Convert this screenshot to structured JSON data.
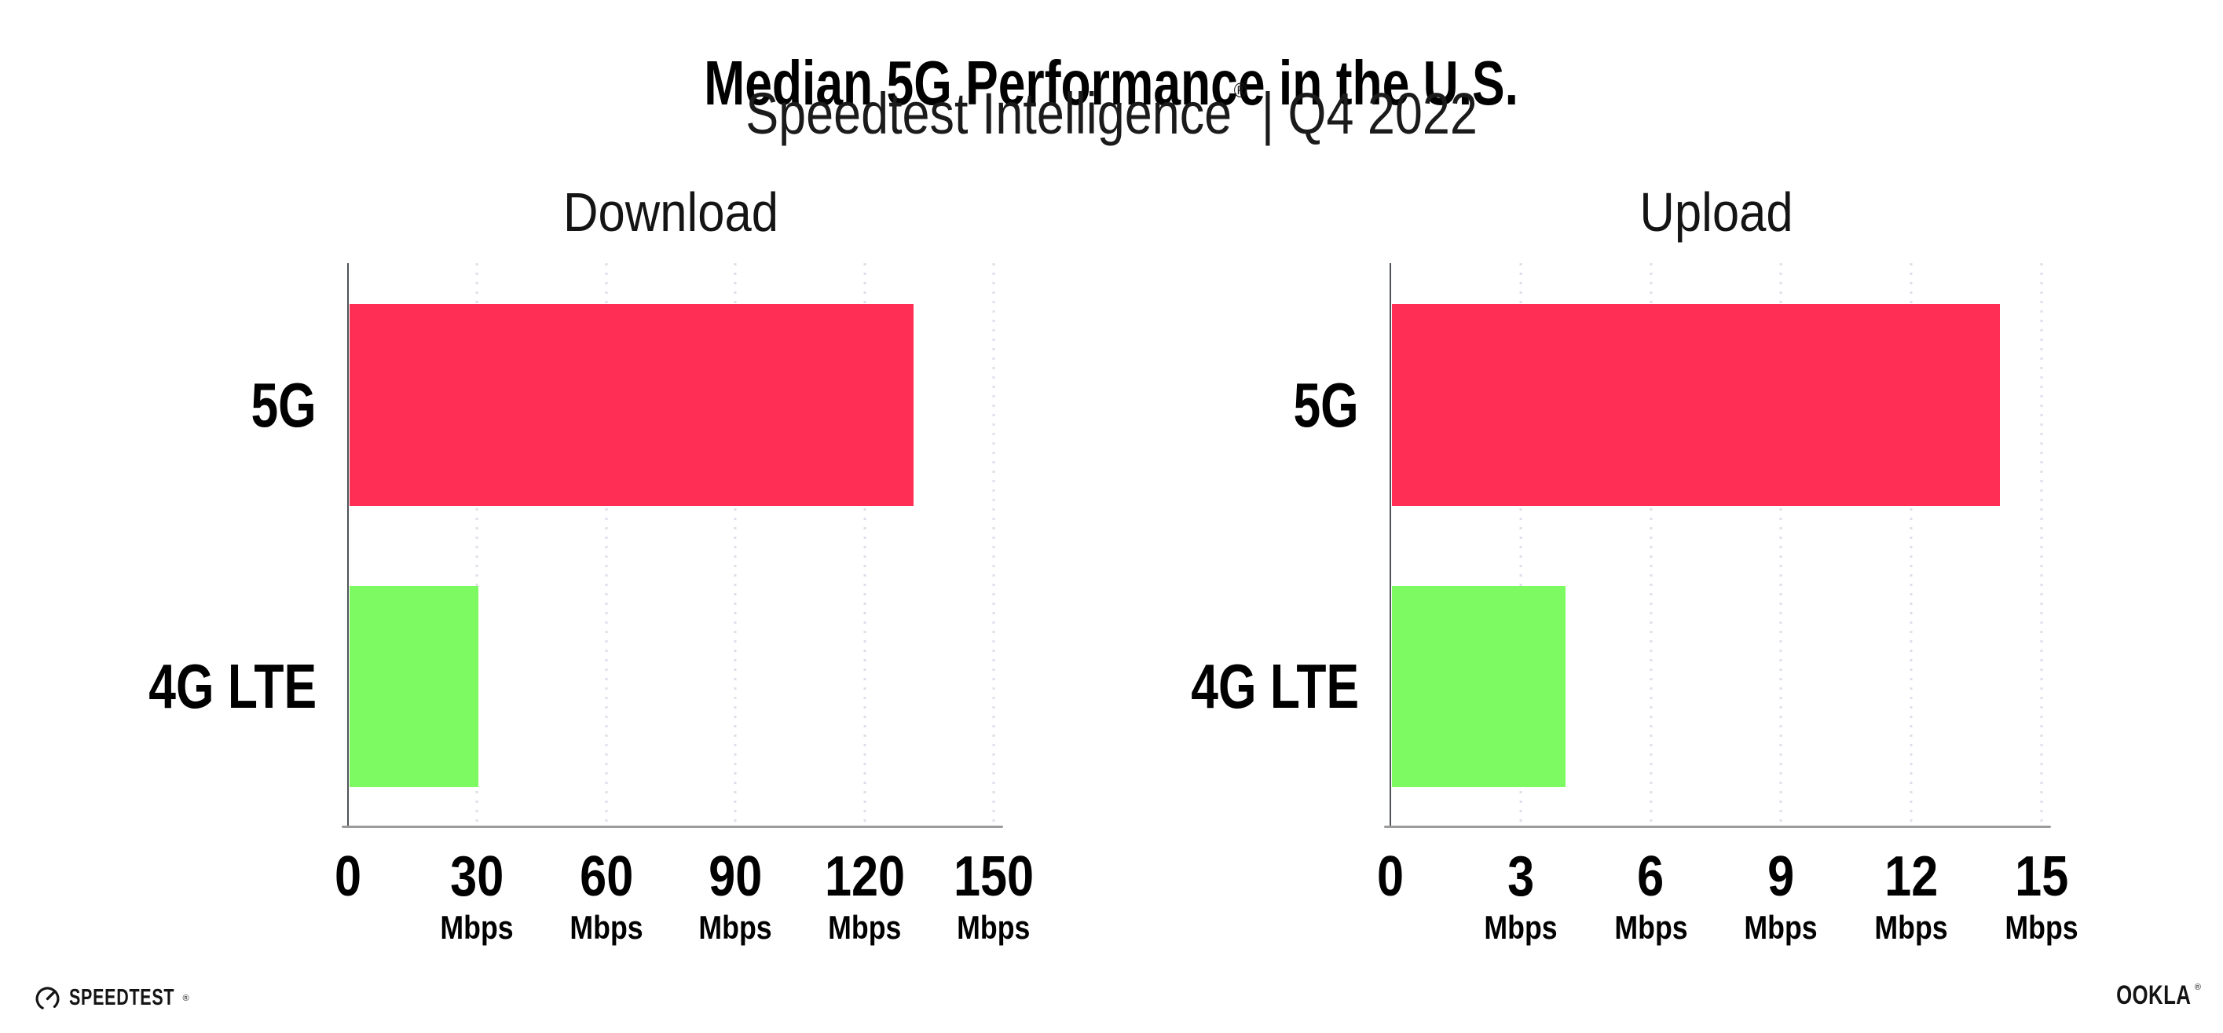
{
  "header": {
    "title": "Median 5G Performance in the U.S.",
    "subtitle_brand": "Speedtest Intelligence",
    "subtitle_reg": "®",
    "subtitle_rest": "| Q4 2022"
  },
  "chart_data": [
    {
      "type": "bar",
      "orientation": "horizontal",
      "title": "Download",
      "categories": [
        "5G",
        "4G LTE"
      ],
      "values": [
        131,
        30
      ],
      "unit": "Mbps",
      "xlabel": "",
      "ylabel": "",
      "xlim": [
        0,
        150
      ],
      "xticks": [
        0,
        30,
        60,
        90,
        120,
        150
      ],
      "bar_colors": [
        "#FF2E54",
        "#7DFA61"
      ],
      "grid": "dotted vertical gridlines at each tick",
      "legend_position": "none"
    },
    {
      "type": "bar",
      "orientation": "horizontal",
      "title": "Upload",
      "categories": [
        "5G",
        "4G LTE"
      ],
      "values": [
        14,
        4
      ],
      "unit": "Mbps",
      "xlabel": "",
      "ylabel": "",
      "xlim": [
        0,
        15
      ],
      "xticks": [
        0,
        3,
        6,
        9,
        12,
        15
      ],
      "bar_colors": [
        "#FF2E54",
        "#7DFA61"
      ],
      "grid": "dotted vertical gridlines at each tick",
      "legend_position": "none"
    }
  ],
  "footer": {
    "speedtest_wordmark": "SPEEDTEST",
    "speedtest_reg": "®",
    "ookla_wordmark": "OOKLA",
    "ookla_reg": "®"
  },
  "colors": {
    "bar_5g": "#FF2E54",
    "bar_4g_lte": "#7DFA61",
    "gridline": "#DFDEEA",
    "x_axis_line": "#9B9B9B",
    "y_axis_line": "#4E5157",
    "text": "#111111",
    "background": "#FFFFFF"
  }
}
